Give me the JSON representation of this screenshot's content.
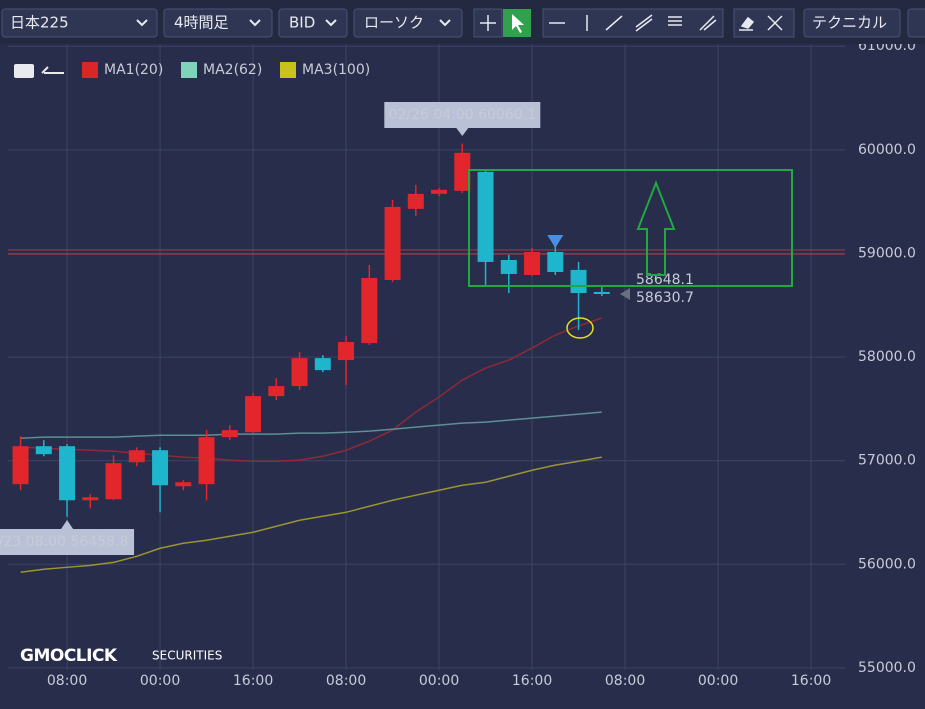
{
  "toolbar": {
    "symbol": "日本225",
    "timeframe": "4時間足",
    "side": "BID",
    "chart_style": "ローソク",
    "technical": "テクニカル"
  },
  "logo": {
    "brand": "GMOCLICK",
    "sub": "SECURITIES"
  },
  "chart_data": {
    "type": "candlestick",
    "up_color": "#e3262b",
    "down_color": "#1fb5cc",
    "grid": true,
    "x": [
      0,
      1,
      2,
      3,
      4,
      5,
      6,
      7,
      8,
      9,
      10,
      11,
      12,
      13,
      14,
      15,
      16,
      17,
      18,
      19,
      20,
      21,
      22,
      23,
      24,
      25
    ],
    "open": [
      56773,
      57140,
      57140,
      56618,
      56628,
      56985,
      57101,
      56753,
      56773,
      57227,
      57275,
      57623,
      57720,
      57990,
      57971,
      58135,
      58744,
      59430,
      59575,
      59604,
      59787,
      58937,
      58792,
      59014,
      58841,
      58628
    ],
    "close": [
      57140,
      57063,
      56618,
      56647,
      56976,
      57101,
      56763,
      56792,
      57227,
      57295,
      57623,
      57720,
      57990,
      57874,
      58145,
      58763,
      59449,
      59575,
      59614,
      59971,
      58918,
      58802,
      59014,
      58821,
      58618,
      58609
    ],
    "high": [
      57237,
      57198,
      57160,
      56676,
      57053,
      57130,
      57130,
      56812,
      57295,
      57343,
      57652,
      57797,
      58048,
      58019,
      58203,
      58889,
      59517,
      59662,
      59633,
      60060.1,
      59807,
      58986,
      59053,
      59082,
      58918,
      58696
    ],
    "low": [
      56715,
      57043,
      56458.8,
      56541,
      56618,
      56947,
      56502,
      56715,
      56618,
      57198,
      57266,
      57585,
      57681,
      57855,
      57729,
      58116,
      58725,
      59362,
      59555,
      59584,
      58696,
      58618,
      58783,
      58792,
      58261,
      58589
    ],
    "series": [
      {
        "name": "MA1(20)",
        "color": "#d9262a",
        "line_color": "#8e2a37",
        "values": [
          57130,
          57121,
          57111,
          57101,
          57092,
          57072,
          57053,
          57034,
          57024,
          57005,
          56995,
          56995,
          57005,
          57043,
          57101,
          57188,
          57295,
          57469,
          57614,
          57778,
          57894,
          57971,
          58087,
          58213,
          58300,
          58377
        ]
      },
      {
        "name": "MA2(62)",
        "color": "#7fd3b8",
        "line_color": "#5d8f93",
        "values": [
          57217,
          57227,
          57227,
          57227,
          57227,
          57237,
          57246,
          57246,
          57246,
          57256,
          57256,
          57256,
          57266,
          57266,
          57275,
          57285,
          57304,
          57324,
          57343,
          57362,
          57372,
          57391,
          57411,
          57430,
          57449,
          57469
        ]
      },
      {
        "name": "MA3(100)",
        "color": "#c9c21d",
        "line_color": "#9a9432",
        "values": [
          55923,
          55952,
          55971,
          55990,
          56019,
          56077,
          56155,
          56203,
          56232,
          56271,
          56309,
          56367,
          56425,
          56464,
          56502,
          56560,
          56618,
          56667,
          56715,
          56763,
          56792,
          56850,
          56908,
          56957,
          56995,
          57034
        ]
      }
    ],
    "price_lines": [
      59034,
      58995
    ],
    "high_label": "02/26 04:00 60060.1",
    "low_label": "2/23 08:00 56458.8",
    "last_labels": [
      "58648.1",
      "58630.7"
    ],
    "xlim": [
      -0.54,
      35.46
    ],
    "ylim": [
      54980,
      61060
    ],
    "xticks": [
      {
        "value": 2,
        "label": "08:00"
      },
      {
        "value": 6,
        "label": "00:00"
      },
      {
        "value": 10,
        "label": "16:00"
      },
      {
        "value": 14,
        "label": "08:00"
      },
      {
        "value": 18,
        "label": "00:00"
      },
      {
        "value": 22,
        "label": "16:00"
      },
      {
        "value": 26,
        "label": "08:00"
      },
      {
        "value": 30,
        "label": "00:00"
      },
      {
        "value": 34,
        "label": "16:00"
      }
    ],
    "yticks": [
      {
        "value": 55000,
        "label": "55000.0"
      },
      {
        "value": 56000,
        "label": "56000.0"
      },
      {
        "value": 57000,
        "label": "57000.0"
      },
      {
        "value": 58000,
        "label": "58000.0"
      },
      {
        "value": 59000,
        "label": "59000.0"
      },
      {
        "value": 60000,
        "label": "60000.0"
      },
      {
        "value": 61000,
        "label": "61000.0"
      }
    ]
  }
}
